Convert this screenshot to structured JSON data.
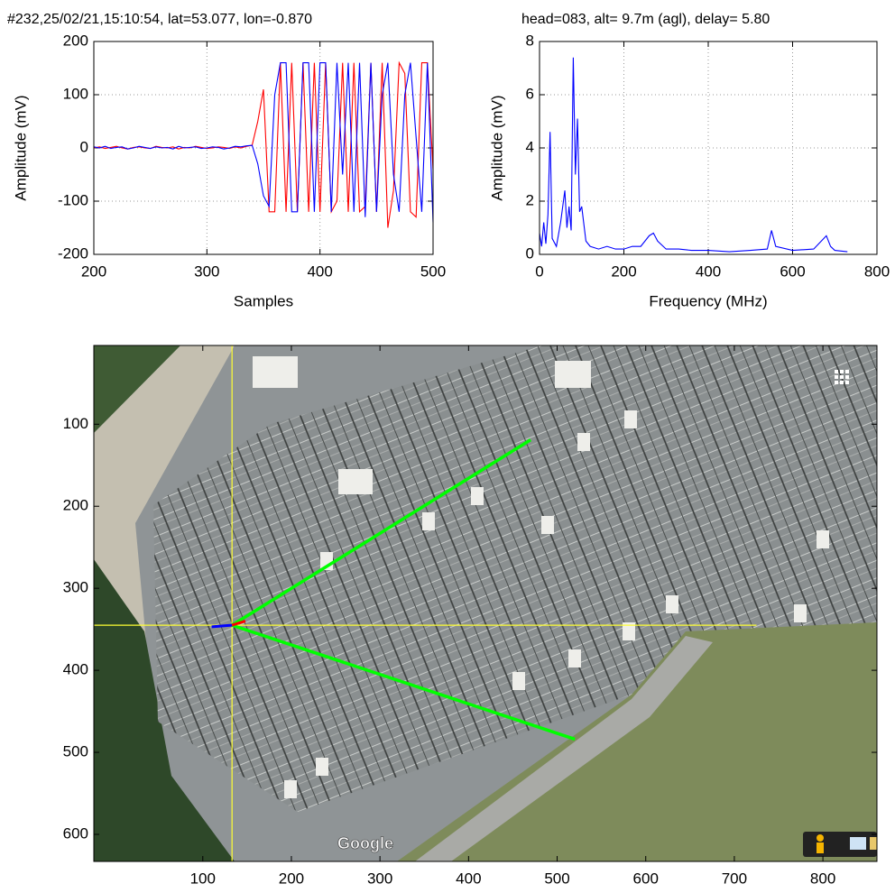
{
  "chart_data": [
    {
      "type": "line",
      "title": "#232,25/02/21,15:10:54, lat=53.077, lon=-0.870",
      "xlabel": "Samples",
      "ylabel": "Amplitude (mV)",
      "xlim": [
        200,
        500
      ],
      "ylim": [
        -200,
        200
      ],
      "xticks": [
        200,
        300,
        400,
        500
      ],
      "yticks": [
        -200,
        -100,
        0,
        100,
        200
      ],
      "grid": true,
      "x": [
        200,
        205,
        210,
        215,
        220,
        225,
        230,
        235,
        240,
        245,
        250,
        255,
        260,
        265,
        270,
        275,
        280,
        285,
        290,
        295,
        300,
        305,
        310,
        315,
        320,
        325,
        330,
        335,
        340,
        345,
        350,
        355,
        360,
        365,
        370,
        375,
        380,
        385,
        390,
        395,
        400,
        405,
        410,
        415,
        420,
        425,
        430,
        435,
        440,
        445,
        450,
        455,
        460,
        465,
        470,
        475,
        480,
        485,
        490,
        495,
        500
      ],
      "series": [
        {
          "color": "#ff0000",
          "values": [
            0,
            2,
            -1,
            1,
            3,
            0,
            -2,
            1,
            2,
            0,
            -1,
            3,
            1,
            0,
            2,
            -2,
            1,
            0,
            3,
            1,
            -1,
            0,
            2,
            1,
            -1,
            2,
            0,
            3,
            5,
            50,
            110,
            -120,
            -120,
            160,
            -120,
            160,
            -120,
            160,
            -120,
            160,
            -120,
            160,
            -120,
            -100,
            160,
            -120,
            160,
            -120,
            -110,
            160,
            -120,
            160,
            -150,
            -80,
            160,
            140,
            -120,
            -130,
            160,
            160,
            -40
          ]
        },
        {
          "color": "#0000ff",
          "values": [
            2,
            0,
            3,
            -1,
            1,
            2,
            -2,
            0,
            3,
            1,
            -1,
            2,
            0,
            1,
            -2,
            3,
            0,
            1,
            2,
            -1,
            0,
            2,
            1,
            -2,
            0,
            3,
            2,
            4,
            5,
            -30,
            -90,
            -110,
            100,
            160,
            160,
            -120,
            -120,
            160,
            160,
            -120,
            160,
            160,
            -120,
            160,
            -50,
            160,
            -120,
            160,
            -130,
            160,
            -120,
            100,
            160,
            -50,
            -120,
            100,
            160,
            20,
            -120,
            160,
            -140
          ]
        }
      ]
    },
    {
      "type": "line",
      "title": "head=083, alt=  9.7m (agl), delay= 5.80",
      "xlabel": "Frequency (MHz)",
      "ylabel": "Amplitude (mV)",
      "xlim": [
        0,
        800
      ],
      "ylim": [
        0,
        8
      ],
      "xticks": [
        0,
        200,
        400,
        600,
        800
      ],
      "yticks": [
        0,
        2,
        4,
        6,
        8
      ],
      "grid": true,
      "x": [
        0,
        5,
        10,
        15,
        20,
        25,
        30,
        40,
        50,
        60,
        65,
        70,
        75,
        80,
        85,
        90,
        95,
        100,
        110,
        120,
        140,
        160,
        180,
        200,
        220,
        240,
        250,
        260,
        270,
        280,
        300,
        330,
        360,
        400,
        450,
        500,
        540,
        550,
        560,
        600,
        650,
        680,
        690,
        700,
        730
      ],
      "series": [
        {
          "color": "#0000ff",
          "values": [
            0.8,
            0.3,
            1.2,
            0.4,
            1.5,
            4.6,
            0.6,
            0.3,
            1.2,
            2.4,
            1.0,
            1.8,
            0.9,
            7.4,
            3.0,
            5.1,
            1.6,
            1.8,
            0.5,
            0.3,
            0.2,
            0.3,
            0.2,
            0.2,
            0.3,
            0.3,
            0.5,
            0.7,
            0.8,
            0.5,
            0.2,
            0.2,
            0.15,
            0.15,
            0.1,
            0.15,
            0.2,
            0.9,
            0.3,
            0.15,
            0.2,
            0.7,
            0.3,
            0.15,
            0.1
          ]
        }
      ]
    },
    {
      "type": "image",
      "xlim": [
        -23,
        861
      ],
      "ylim": [
        4,
        633
      ],
      "yreverse": true,
      "xticks": [
        100,
        200,
        300,
        400,
        500,
        600,
        700,
        800
      ],
      "yticks": [
        100,
        200,
        300,
        400,
        500,
        600
      ],
      "grid": false,
      "watermark": "Google",
      "lines": [
        {
          "color": "#ffff33",
          "x": [
            -23,
            725
          ],
          "y": [
            345,
            345
          ]
        },
        {
          "color": "#ffff33",
          "x": [
            133,
            133
          ],
          "y": [
            4,
            633
          ]
        },
        {
          "color": "#00ff00",
          "x": [
            133,
            470
          ],
          "y": [
            345,
            119
          ]
        },
        {
          "color": "#00ff00",
          "x": [
            133,
            520
          ],
          "y": [
            345,
            484
          ]
        },
        {
          "color": "#0000ff",
          "x": [
            110,
            133
          ],
          "y": [
            347,
            345
          ]
        },
        {
          "color": "#ff0000",
          "x": [
            133,
            148
          ],
          "y": [
            345,
            340
          ]
        }
      ]
    }
  ]
}
